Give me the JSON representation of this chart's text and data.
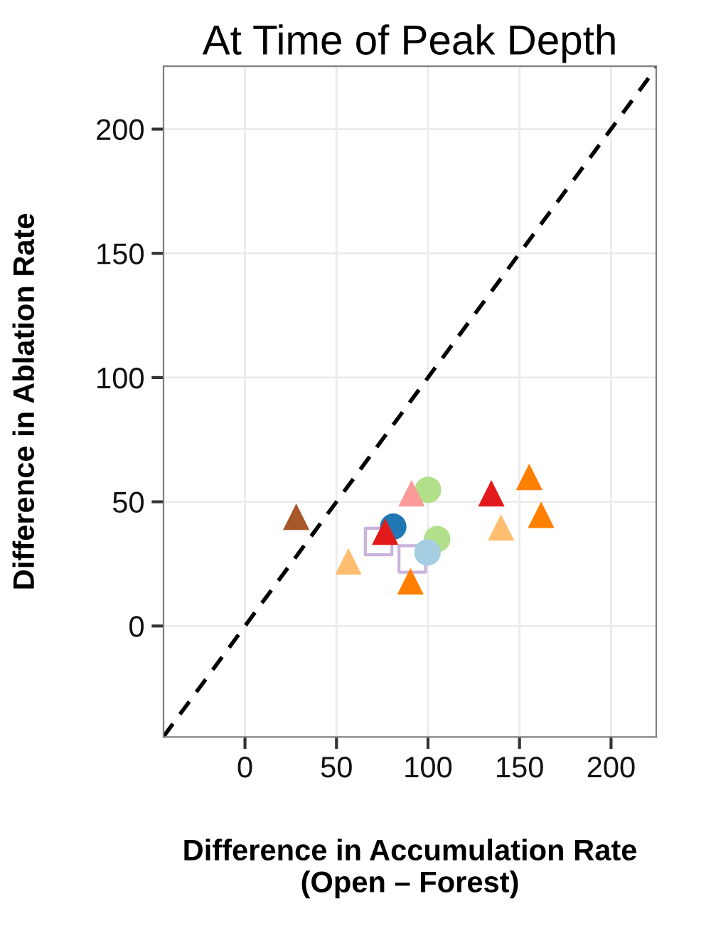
{
  "chart_data": {
    "type": "scatter",
    "title": "At Time of Peak Depth",
    "xlabel": "Difference in Accumulation Rate\n(Open – Forest)",
    "ylabel": "Difference in Ablation Rate",
    "xlim": [
      -44.5,
      224.7
    ],
    "ylim": [
      -44.7,
      225.3
    ],
    "xticks": [
      0,
      50,
      100,
      150,
      200
    ],
    "yticks": [
      0,
      50,
      100,
      150,
      200
    ],
    "grid": true,
    "series": [
      {
        "type": "line",
        "color": "#000000",
        "line_style": "dashed",
        "marker": "none",
        "x": [
          -44.5,
          224.7
        ],
        "values": [
          -44.5,
          224.7
        ]
      },
      {
        "color": "#a6582b",
        "marker": "triangle",
        "x": [
          28
        ],
        "values": [
          44
        ]
      },
      {
        "color": "#fdbf6f",
        "marker": "triangle",
        "x": [
          56.5,
          139.9
        ],
        "values": [
          26,
          39.7
        ]
      },
      {
        "color": "#c9b3dc",
        "marker": "square",
        "x": [
          73,
          91.4
        ],
        "values": [
          34,
          27
        ]
      },
      {
        "color": "#1f78b4",
        "marker": "circle",
        "x": [
          81
        ],
        "values": [
          40
        ]
      },
      {
        "color": "#e31a1c",
        "marker": "triangle",
        "x": [
          76.6,
          134.6
        ],
        "values": [
          38,
          53.4
        ]
      },
      {
        "color": "#b2df8a",
        "marker": "circle",
        "x": [
          100,
          105
        ],
        "values": [
          54.8,
          35
        ]
      },
      {
        "color": "#fb9a99",
        "marker": "triangle",
        "x": [
          91
        ],
        "values": [
          53.4
        ]
      },
      {
        "color": "#a6cee3",
        "marker": "circle",
        "x": [
          99.7
        ],
        "values": [
          29.6
        ]
      },
      {
        "color": "#ff7f00",
        "marker": "triangle",
        "x": [
          90.4,
          155.3,
          161.8
        ],
        "values": [
          18,
          60,
          44.8
        ]
      }
    ]
  }
}
